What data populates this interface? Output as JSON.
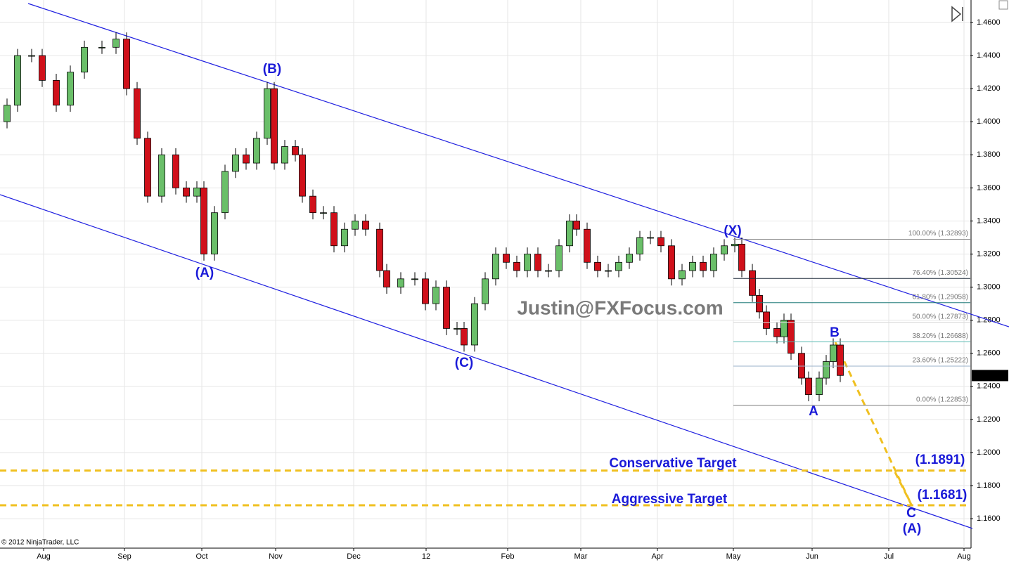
{
  "chart_data": {
    "type": "candlestick",
    "watermark": "Justin@FXFocus.com",
    "copyright": "© 2012 NinjaTrader, LLC",
    "last_price_label": "1.2465'5",
    "last_price": 1.24655,
    "xlim": [
      0,
      276
    ],
    "ylim": [
      1.1422,
      1.4736
    ],
    "xticks": [
      {
        "value": 12.4,
        "label": "Aug"
      },
      {
        "value": 35.4,
        "label": "Sep"
      },
      {
        "value": 57.4,
        "label": "Oct"
      },
      {
        "value": 78.4,
        "label": "Nov"
      },
      {
        "value": 100.6,
        "label": "Dec"
      },
      {
        "value": 121.2,
        "label": "12"
      },
      {
        "value": 144.4,
        "label": "Feb"
      },
      {
        "value": 165.2,
        "label": "Mar"
      },
      {
        "value": 187,
        "label": "Apr"
      },
      {
        "value": 208.6,
        "label": "May"
      },
      {
        "value": 231,
        "label": "Jun"
      },
      {
        "value": 252.8,
        "label": "Jul"
      },
      {
        "value": 274.2,
        "label": "Aug"
      }
    ],
    "yticks": [
      {
        "value": 1.16,
        "label": "1.1600"
      },
      {
        "value": 1.18,
        "label": "1.1800"
      },
      {
        "value": 1.2,
        "label": "1.2000"
      },
      {
        "value": 1.22,
        "label": "1.2200"
      },
      {
        "value": 1.24,
        "label": "1.2400"
      },
      {
        "value": 1.26,
        "label": "1.2600"
      },
      {
        "value": 1.28,
        "label": "1.2800"
      },
      {
        "value": 1.3,
        "label": "1.3000"
      },
      {
        "value": 1.32,
        "label": "1.3200"
      },
      {
        "value": 1.34,
        "label": "1.3400"
      },
      {
        "value": 1.36,
        "label": "1.3600"
      },
      {
        "value": 1.38,
        "label": "1.3800"
      },
      {
        "value": 1.4,
        "label": "1.4000"
      },
      {
        "value": 1.42,
        "label": "1.4200"
      },
      {
        "value": 1.44,
        "label": "1.4400"
      },
      {
        "value": 1.46,
        "label": "1.4600"
      }
    ],
    "grid": true,
    "up_color": "#6abf69",
    "down_color": "#d0101a",
    "x": [
      2,
      5,
      9,
      12,
      16,
      20,
      24,
      29,
      33,
      36,
      39,
      42,
      46,
      50,
      53,
      56,
      58,
      61,
      64,
      67,
      70,
      73,
      76,
      78,
      81,
      84,
      86,
      89,
      92,
      95,
      98,
      101,
      104,
      108,
      110,
      114,
      118,
      121,
      124,
      127,
      130,
      132,
      135,
      138,
      141,
      144,
      147,
      150,
      153,
      156,
      159,
      162,
      164,
      167,
      170,
      173,
      176,
      179,
      182,
      185,
      188,
      191,
      194,
      197,
      200,
      203,
      206,
      209,
      211,
      214,
      216,
      218,
      221,
      223,
      225,
      228,
      230,
      233,
      235,
      237,
      239
    ],
    "open": [
      1.4,
      1.41,
      1.44,
      1.44,
      1.425,
      1.41,
      1.43,
      1.445,
      1.445,
      1.45,
      1.42,
      1.39,
      1.355,
      1.38,
      1.36,
      1.355,
      1.36,
      1.32,
      1.345,
      1.37,
      1.38,
      1.375,
      1.39,
      1.42,
      1.375,
      1.385,
      1.38,
      1.355,
      1.345,
      1.345,
      1.325,
      1.335,
      1.34,
      1.335,
      1.31,
      1.3,
      1.305,
      1.305,
      1.29,
      1.3,
      1.275,
      1.275,
      1.265,
      1.29,
      1.305,
      1.32,
      1.315,
      1.31,
      1.32,
      1.31,
      1.31,
      1.325,
      1.34,
      1.335,
      1.315,
      1.31,
      1.31,
      1.315,
      1.32,
      1.33,
      1.33,
      1.325,
      1.305,
      1.31,
      1.315,
      1.31,
      1.32,
      1.325,
      1.326,
      1.31,
      1.295,
      1.285,
      1.275,
      1.27,
      1.28,
      1.26,
      1.245,
      1.235,
      1.245,
      1.255,
      1.265
    ],
    "high": [
      1.414,
      1.444,
      1.444,
      1.444,
      1.429,
      1.434,
      1.449,
      1.449,
      1.454,
      1.454,
      1.424,
      1.394,
      1.384,
      1.384,
      1.364,
      1.364,
      1.364,
      1.349,
      1.374,
      1.384,
      1.384,
      1.394,
      1.424,
      1.424,
      1.389,
      1.389,
      1.384,
      1.359,
      1.349,
      1.349,
      1.339,
      1.344,
      1.344,
      1.339,
      1.314,
      1.309,
      1.309,
      1.309,
      1.304,
      1.304,
      1.279,
      1.279,
      1.294,
      1.309,
      1.324,
      1.324,
      1.319,
      1.324,
      1.324,
      1.314,
      1.329,
      1.344,
      1.344,
      1.339,
      1.319,
      1.314,
      1.319,
      1.324,
      1.334,
      1.334,
      1.334,
      1.329,
      1.314,
      1.319,
      1.319,
      1.324,
      1.329,
      1.33,
      1.33,
      1.314,
      1.299,
      1.289,
      1.279,
      1.284,
      1.284,
      1.264,
      1.249,
      1.249,
      1.259,
      1.269,
      1.269
    ],
    "low": [
      1.396,
      1.406,
      1.436,
      1.421,
      1.406,
      1.406,
      1.426,
      1.441,
      1.441,
      1.416,
      1.386,
      1.351,
      1.351,
      1.356,
      1.351,
      1.351,
      1.316,
      1.316,
      1.341,
      1.366,
      1.371,
      1.371,
      1.386,
      1.371,
      1.371,
      1.376,
      1.351,
      1.341,
      1.341,
      1.321,
      1.321,
      1.331,
      1.331,
      1.306,
      1.296,
      1.296,
      1.301,
      1.286,
      1.286,
      1.271,
      1.271,
      1.261,
      1.261,
      1.286,
      1.301,
      1.311,
      1.306,
      1.306,
      1.306,
      1.306,
      1.306,
      1.321,
      1.331,
      1.311,
      1.306,
      1.306,
      1.306,
      1.311,
      1.316,
      1.326,
      1.321,
      1.301,
      1.301,
      1.306,
      1.306,
      1.306,
      1.316,
      1.321,
      1.306,
      1.291,
      1.281,
      1.271,
      1.266,
      1.266,
      1.256,
      1.241,
      1.231,
      1.231,
      1.241,
      1.251,
      1.2426
    ],
    "close": [
      1.41,
      1.44,
      1.44,
      1.425,
      1.41,
      1.43,
      1.445,
      1.445,
      1.45,
      1.42,
      1.39,
      1.355,
      1.38,
      1.36,
      1.355,
      1.36,
      1.32,
      1.345,
      1.37,
      1.38,
      1.375,
      1.39,
      1.42,
      1.375,
      1.385,
      1.38,
      1.355,
      1.345,
      1.345,
      1.325,
      1.335,
      1.34,
      1.335,
      1.31,
      1.3,
      1.305,
      1.305,
      1.29,
      1.3,
      1.275,
      1.275,
      1.265,
      1.29,
      1.305,
      1.32,
      1.315,
      1.31,
      1.32,
      1.31,
      1.31,
      1.325,
      1.34,
      1.335,
      1.315,
      1.31,
      1.31,
      1.315,
      1.32,
      1.33,
      1.33,
      1.325,
      1.305,
      1.31,
      1.315,
      1.31,
      1.32,
      1.325,
      1.326,
      1.31,
      1.295,
      1.285,
      1.275,
      1.27,
      1.28,
      1.26,
      1.245,
      1.235,
      1.245,
      1.255,
      1.265,
      1.2466
    ],
    "fib_levels": [
      {
        "label": "100.00% (1.32893)",
        "value": 1.32893,
        "color": "#8c8c8c"
      },
      {
        "label": "76.40% (1.30524)",
        "value": 1.30524,
        "color": "#1e2a3a"
      },
      {
        "label": "61.80% (1.29058)",
        "value": 1.29058,
        "color": "#1f7a78"
      },
      {
        "label": "50.00% (1.27873)",
        "value": 1.27873,
        "color": "#d8d8d8"
      },
      {
        "label": "38.20% (1.26688)",
        "value": 1.26688,
        "color": "#55b8b0"
      },
      {
        "label": "23.60% (1.25222)",
        "value": 1.25222,
        "color": "#9ab0c8"
      },
      {
        "label": "0.00% (1.22853)",
        "value": 1.22853,
        "color": "#7a7a7a"
      }
    ],
    "targets": [
      {
        "name": "Conservative Target",
        "value": 1.1891,
        "label": "(1.1891)",
        "color": "#f0c020"
      },
      {
        "name": "Aggressive Target",
        "value": 1.1681,
        "label": "(1.1681)",
        "color": "#f0c020"
      }
    ],
    "annotations": [
      "(A)",
      "(B)",
      "(C)",
      "(X)",
      "A",
      "B",
      "C",
      "(A)"
    ]
  }
}
